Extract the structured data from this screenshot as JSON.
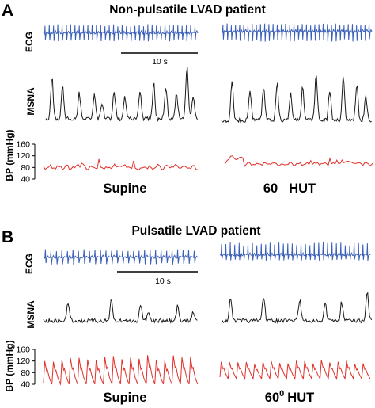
{
  "panels": [
    {
      "letter": "A",
      "title": "Non-pulsatile LVAD patient",
      "conditions": [
        "Supine",
        "60",
        "HUT"
      ],
      "condition_sup": "",
      "scale_bar": "10 s",
      "ylabels": {
        "ecg": "ECG",
        "msna": "MSNA",
        "bp": "BP (mmHg)"
      },
      "bp_ticks": [
        "160",
        "120",
        "80",
        "40"
      ]
    },
    {
      "letter": "B",
      "title": "Pulsatile LVAD patient",
      "conditions": [
        "Supine",
        "60",
        "HUT"
      ],
      "condition_sup": "0",
      "scale_bar": "10 s",
      "ylabels": {
        "ecg": "ECG",
        "msna": "MSNA",
        "bp": "BP (mmHg)"
      },
      "bp_ticks": [
        "160",
        "120",
        "80",
        "40"
      ]
    }
  ],
  "colors": {
    "ecg": "#3a5fb8",
    "msna": "#1a1a1a",
    "bp": "#e0302a"
  },
  "chart_data": [
    {
      "type": "line",
      "panel": "A",
      "series": [
        {
          "name": "ECG",
          "condition": "Supine",
          "beats": 36
        },
        {
          "name": "ECG",
          "condition": "60 HUT",
          "beats": 36
        },
        {
          "name": "MSNA",
          "condition": "Supine",
          "bursts": 13
        },
        {
          "name": "MSNA",
          "condition": "60 HUT",
          "bursts": 11
        },
        {
          "name": "BP",
          "condition": "Supine",
          "mean_mmHg": 80,
          "range_mmHg": [
            72,
            95
          ]
        },
        {
          "name": "BP",
          "condition": "60 HUT",
          "mean_mmHg": 85,
          "range_mmHg": [
            75,
            110
          ]
        }
      ],
      "ylim_bp": [
        40,
        160
      ]
    },
    {
      "type": "line",
      "panel": "B",
      "series": [
        {
          "name": "ECG",
          "condition": "Supine",
          "beats": 28
        },
        {
          "name": "ECG",
          "condition": "60° HUT",
          "beats": 34
        },
        {
          "name": "MSNA",
          "condition": "Supine",
          "bursts": 6
        },
        {
          "name": "MSNA",
          "condition": "60° HUT",
          "bursts": 7
        },
        {
          "name": "BP",
          "condition": "Supine",
          "range_mmHg": [
            60,
            140
          ]
        },
        {
          "name": "BP",
          "condition": "60° HUT",
          "range_mmHg": [
            70,
            130
          ]
        }
      ],
      "ylim_bp": [
        40,
        160
      ]
    }
  ]
}
